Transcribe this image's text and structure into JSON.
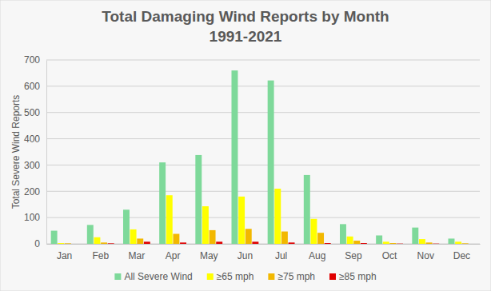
{
  "chart_data": {
    "type": "bar",
    "title": "Total Damaging Wind Reports by Month",
    "subtitle": "1991-2021",
    "y_label": "Total Severe Wind Reports",
    "categories": [
      "Jan",
      "Feb",
      "Mar",
      "Apr",
      "May",
      "Jun",
      "Jul",
      "Aug",
      "Sep",
      "Oct",
      "Nov",
      "Dec"
    ],
    "series": [
      {
        "name": "All Severe Wind",
        "color": "#7ed99a",
        "values": [
          50,
          72,
          130,
          310,
          338,
          660,
          622,
          262,
          75,
          32,
          62,
          20
        ]
      },
      {
        "name": "≥65 mph",
        "color": "#ffff00",
        "values": [
          3,
          25,
          55,
          185,
          143,
          180,
          210,
          95,
          28,
          8,
          18,
          8
        ]
      },
      {
        "name": "≥75 mph",
        "color": "#f2b800",
        "values": [
          2,
          5,
          20,
          38,
          52,
          57,
          47,
          42,
          12,
          3,
          5,
          2
        ]
      },
      {
        "name": "≥85 mph",
        "color": "#e00000",
        "values": [
          0,
          2,
          8,
          5,
          8,
          8,
          5,
          3,
          3,
          1,
          1,
          0
        ]
      }
    ],
    "ylim": [
      0,
      700
    ],
    "yticks": [
      0,
      100,
      200,
      300,
      400,
      500,
      600,
      700
    ],
    "grid": true,
    "legend": "bottom"
  }
}
